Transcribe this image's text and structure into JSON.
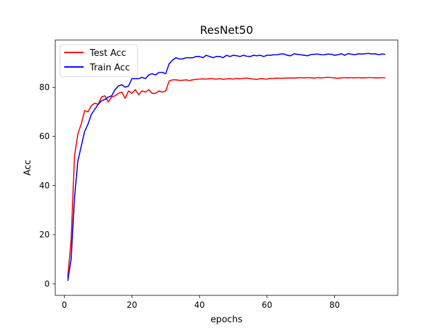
{
  "chart_data": {
    "type": "line",
    "title": "ResNet50",
    "xlabel": "epochs",
    "ylabel": "Acc",
    "xlim": [
      -2.7,
      98.7
    ],
    "ylim": [
      -4.7,
      99.2
    ],
    "xticks": [
      0,
      20,
      40,
      60,
      80
    ],
    "yticks": [
      0,
      20,
      40,
      60,
      80
    ],
    "grid": false,
    "legend_position": "top-left",
    "x": [
      1,
      2,
      3,
      4,
      5,
      6,
      7,
      8,
      9,
      10,
      11,
      12,
      13,
      14,
      15,
      16,
      17,
      18,
      19,
      20,
      21,
      22,
      23,
      24,
      25,
      26,
      27,
      28,
      29,
      30,
      31,
      32,
      33,
      34,
      35,
      36,
      37,
      38,
      39,
      40,
      41,
      42,
      43,
      44,
      45,
      46,
      47,
      48,
      49,
      50,
      51,
      52,
      53,
      54,
      55,
      56,
      57,
      58,
      59,
      60,
      61,
      62,
      63,
      64,
      65,
      66,
      67,
      68,
      69,
      70,
      71,
      72,
      73,
      74,
      75,
      76,
      77,
      78,
      79,
      80,
      81,
      82,
      83,
      84,
      85,
      86,
      87,
      88,
      89,
      90,
      91,
      92,
      93,
      94,
      95
    ],
    "series": [
      {
        "name": "Test Acc",
        "color": "#ff0000",
        "values": [
          2.5,
          18,
          52,
          61,
          65,
          70.5,
          70,
          72.5,
          73.5,
          73,
          76,
          76.5,
          74,
          76,
          76.5,
          77.5,
          78,
          75.5,
          78.5,
          77.5,
          79,
          77,
          78.5,
          78,
          79,
          77.5,
          77.5,
          78.5,
          78,
          78.5,
          82.5,
          83,
          83,
          82.8,
          82.8,
          83,
          82.7,
          83,
          83.2,
          83.3,
          83.4,
          83.3,
          83.5,
          83.4,
          83.3,
          83.5,
          83.2,
          83.4,
          83.5,
          83.3,
          83.6,
          83.4,
          83.6,
          83.7,
          83.5,
          83.3,
          83.2,
          83.5,
          83.4,
          83.3,
          83.6,
          83.6,
          83.7,
          83.6,
          83.7,
          83.7,
          83.8,
          83.7,
          83.8,
          83.9,
          83.8,
          83.9,
          83.8,
          83.7,
          83.9,
          83.8,
          83.9,
          84,
          83.9,
          83.8,
          83.6,
          83.8,
          83.9,
          83.8,
          83.9,
          83.8,
          83.9,
          83.8,
          83.8,
          83.9,
          83.9,
          83.8,
          83.8,
          83.9,
          83.8
        ]
      },
      {
        "name": "Train Acc",
        "color": "#0000ff",
        "values": [
          1.2,
          10,
          35,
          50,
          56,
          62,
          65,
          69,
          71,
          73,
          74.5,
          75,
          76,
          76.5,
          79,
          80.5,
          81,
          80,
          80.5,
          83.5,
          83.5,
          83.5,
          84,
          83.5,
          85,
          85.5,
          85,
          86,
          86,
          85.5,
          89.5,
          91,
          92,
          91.5,
          91.5,
          92,
          92,
          92,
          92.5,
          92.5,
          92,
          93,
          92.5,
          92,
          92.5,
          92.5,
          92,
          93,
          92.5,
          93,
          92.8,
          92.5,
          93,
          92.6,
          92.5,
          93,
          92.8,
          93,
          92.5,
          93,
          93,
          93.2,
          93.2,
          93.5,
          93.5,
          93,
          92.8,
          93.6,
          93.4,
          93.2,
          93,
          92.8,
          93.3,
          93.4,
          93.5,
          93.2,
          93.2,
          93.5,
          93.4,
          93,
          93.2,
          93.6,
          93,
          93.7,
          93.4,
          93.2,
          93.6,
          93.5,
          93.6,
          93.8,
          93.5,
          93.6,
          93.2,
          93.5,
          93.4
        ]
      }
    ]
  }
}
